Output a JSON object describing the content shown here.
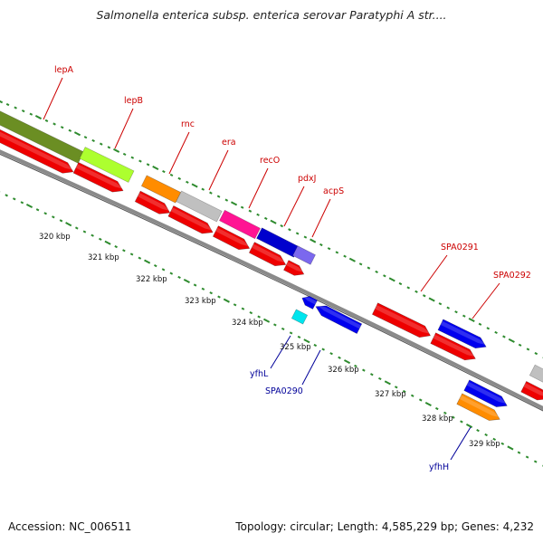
{
  "title": "Salmonella enterica subsp. enterica serovar Paratyphi A str....",
  "footer": {
    "accession": "Accession: NC_006511",
    "summary": "Topology: circular; Length: 4,585,229 bp; Genes: 4,232"
  },
  "colors": {
    "backbone": "#8a8a8a",
    "tick_green": "#2e8b2e",
    "label_forward": "#cc0000",
    "label_reverse": "#000099",
    "cds_red": "#ee0000",
    "lepA": "#6b8e23",
    "lepB": "#adff2f",
    "rnc": "#ff8c00",
    "era": "#c0c0c0",
    "recO": "#ff1493",
    "pdxJ": "#0000cd",
    "acpS": "#7b68ee",
    "yfhL": "#0000ee",
    "SPA0290_cyan": "#00e5ee"
  },
  "genes": [
    {
      "name": "lepA",
      "strand": "forward"
    },
    {
      "name": "lepB",
      "strand": "forward"
    },
    {
      "name": "rnc",
      "strand": "forward"
    },
    {
      "name": "era",
      "strand": "forward"
    },
    {
      "name": "recO",
      "strand": "forward"
    },
    {
      "name": "pdxJ",
      "strand": "forward"
    },
    {
      "name": "acpS",
      "strand": "forward"
    },
    {
      "name": "SPA0291",
      "strand": "forward"
    },
    {
      "name": "SPA0292",
      "strand": "forward"
    },
    {
      "name": "yfhL",
      "strand": "reverse"
    },
    {
      "name": "SPA0290",
      "strand": "reverse"
    },
    {
      "name": "yfhH",
      "strand": "reverse"
    }
  ],
  "ticks": [
    "320 kbp",
    "321 kbp",
    "322 kbp",
    "323 kbp",
    "324 kbp",
    "325 kbp",
    "326 kbp",
    "327 kbp",
    "328 kbp",
    "329 kbp"
  ]
}
